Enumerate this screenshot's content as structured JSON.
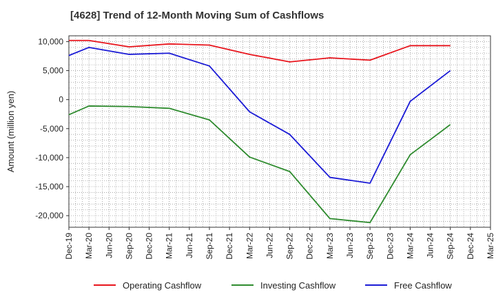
{
  "chart_data": {
    "type": "line",
    "title": "[4628]  Trend of 12-Month Moving Sum of Cashflows",
    "ylabel": "Amount (million yen)",
    "xlabel": "",
    "ylim": [
      -22000,
      11000
    ],
    "yticks": [
      10000,
      5000,
      0,
      -5000,
      -10000,
      -15000,
      -20000
    ],
    "ytick_labels": [
      "10,000",
      "5,000",
      "0",
      "-5,000",
      "-10,000",
      "-15,000",
      "-20,000"
    ],
    "categories": [
      "Dec-19",
      "Mar-20",
      "Jun-20",
      "Sep-20",
      "Dec-20",
      "Mar-21",
      "Jun-21",
      "Sep-21",
      "Dec-21",
      "Mar-22",
      "Jun-22",
      "Sep-22",
      "Dec-22",
      "Mar-23",
      "Jun-23",
      "Sep-23",
      "Dec-23",
      "Mar-24",
      "Jun-24",
      "Sep-24",
      "Dec-24",
      "Mar-25"
    ],
    "grid": true,
    "legend_position": "bottom",
    "series": [
      {
        "name": "Operating Cashflow",
        "color": "#e8141c",
        "x": [
          "Dec-19",
          "Mar-20",
          "Sep-20",
          "Mar-21",
          "Sep-21",
          "Mar-22",
          "Sep-22",
          "Mar-23",
          "Sep-23",
          "Mar-24",
          "Sep-24"
        ],
        "values": [
          10200,
          10200,
          9100,
          9600,
          9400,
          7800,
          6500,
          7200,
          6800,
          9300,
          9300
        ]
      },
      {
        "name": "Investing Cashflow",
        "color": "#2e8b2e",
        "x": [
          "Dec-19",
          "Mar-20",
          "Sep-20",
          "Mar-21",
          "Sep-21",
          "Mar-22",
          "Sep-22",
          "Mar-23",
          "Sep-23",
          "Mar-24",
          "Sep-24"
        ],
        "values": [
          -2600,
          -1100,
          -1200,
          -1500,
          -3500,
          -9900,
          -12400,
          -20500,
          -21200,
          -9500,
          -4300
        ]
      },
      {
        "name": "Free Cashflow",
        "color": "#1a1ad6",
        "x": [
          "Dec-19",
          "Mar-20",
          "Sep-20",
          "Mar-21",
          "Sep-21",
          "Mar-22",
          "Sep-22",
          "Mar-23",
          "Sep-23",
          "Mar-24",
          "Sep-24"
        ],
        "values": [
          7600,
          9000,
          7800,
          8000,
          5800,
          -2100,
          -6000,
          -13400,
          -14400,
          -300,
          5000
        ]
      }
    ]
  }
}
